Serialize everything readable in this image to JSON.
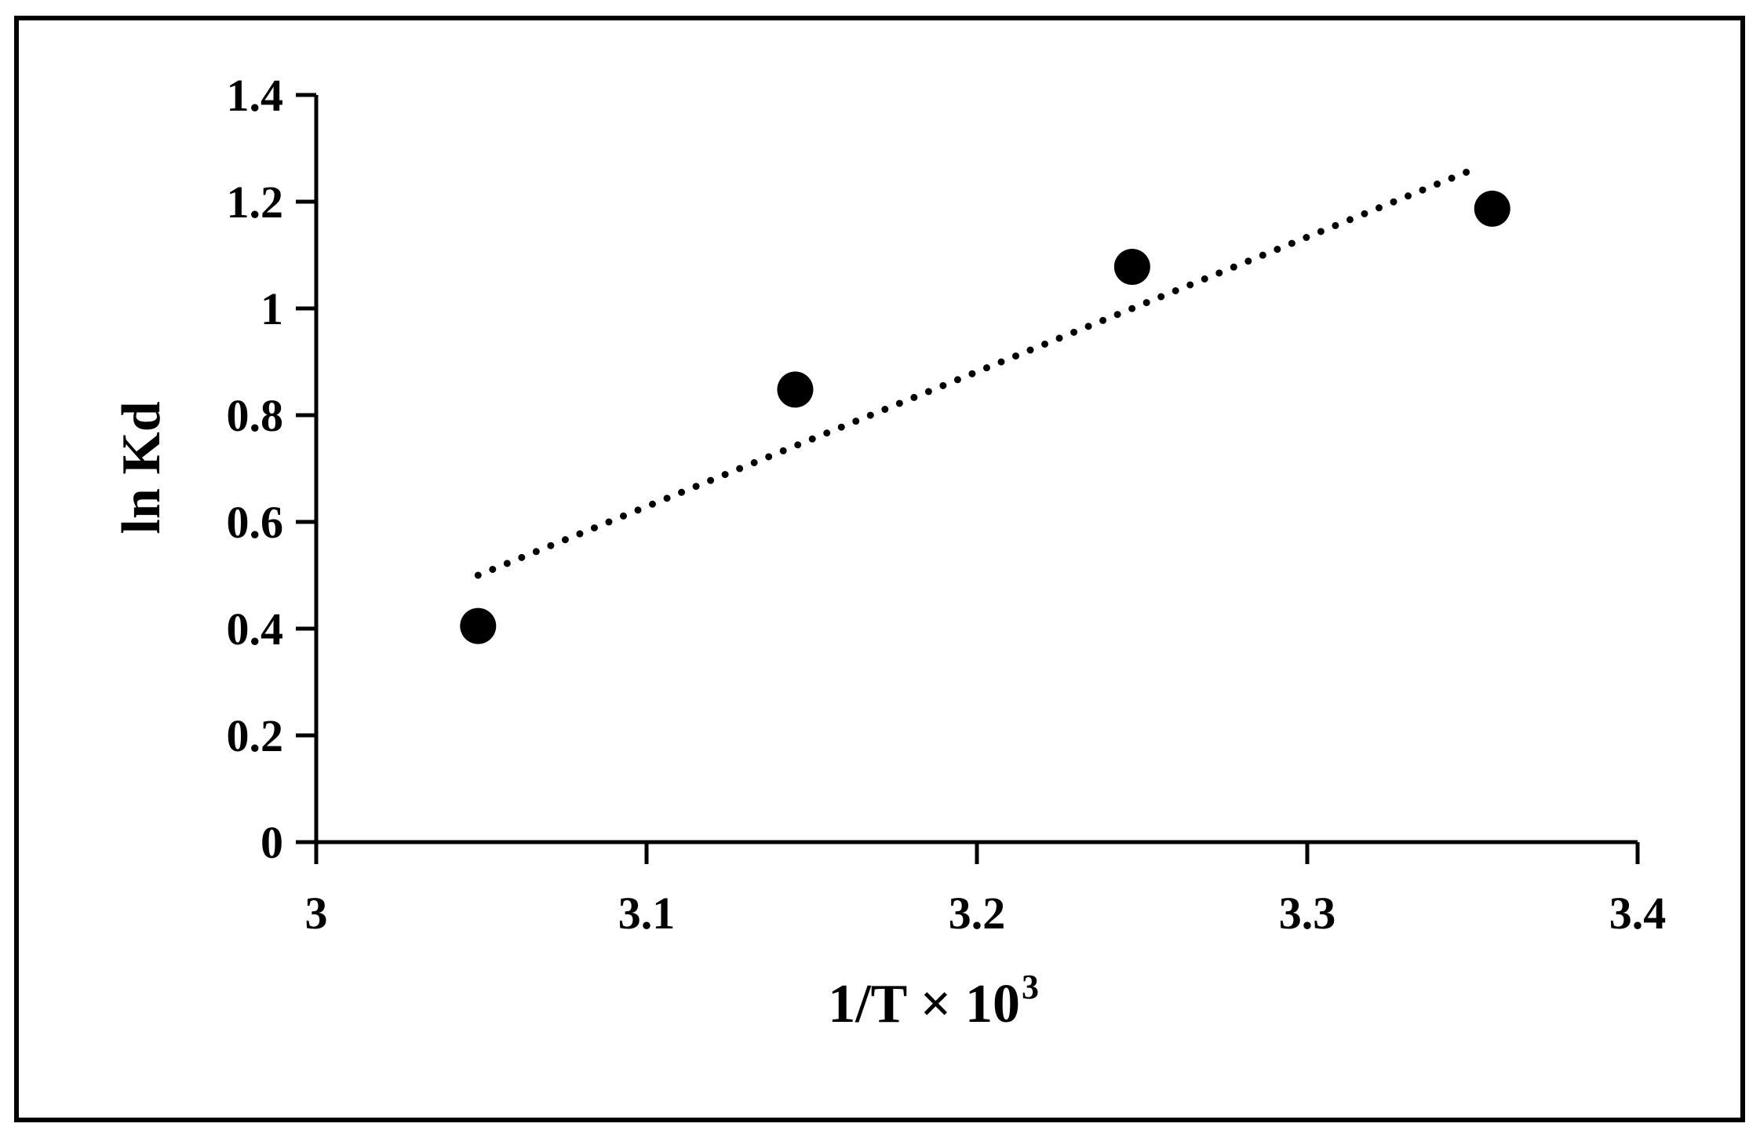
{
  "chart_data": {
    "type": "scatter",
    "title": "",
    "xlabel": "1/T × 10",
    "xlabel_superscript": "3",
    "ylabel": "ln Kd",
    "xlim": [
      3,
      3.4
    ],
    "ylim": [
      0,
      1.4
    ],
    "x_ticks": [
      "3",
      "3.1",
      "3.2",
      "3.3",
      "3.4"
    ],
    "y_ticks": [
      "0",
      "0.2",
      "0.4",
      "0.6",
      "0.8",
      "1",
      "1.2",
      "1.4"
    ],
    "grid": false,
    "legend": "none",
    "series": [
      {
        "points": [
          {
            "x": 3.049,
            "y": 0.405
          },
          {
            "x": 3.145,
            "y": 0.848
          },
          {
            "x": 3.247,
            "y": 1.078
          },
          {
            "x": 3.356,
            "y": 1.187
          }
        ],
        "marker": "filled-circle",
        "color": "#000000"
      }
    ],
    "trendline": {
      "style": "dotted",
      "type": "linear",
      "color": "#000000",
      "start": {
        "x": 3.049,
        "y": 0.5
      },
      "end": {
        "x": 3.352,
        "y": 1.265
      }
    }
  }
}
